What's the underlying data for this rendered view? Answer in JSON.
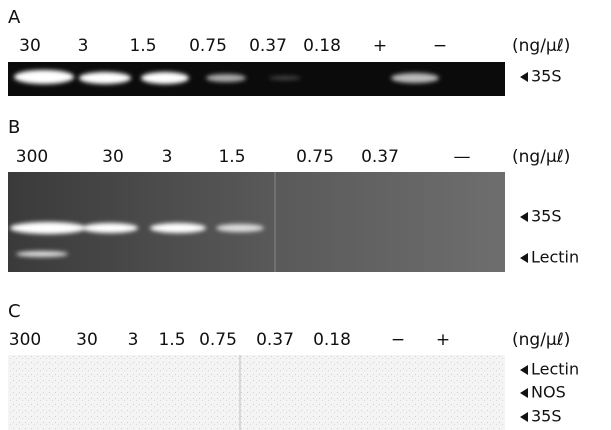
{
  "panels": [
    {
      "label": "A",
      "lanes": [
        "30",
        "3",
        "1.5",
        "0.75",
        "0.37",
        "0.18",
        "+",
        "−"
      ],
      "unit": "(ng/μℓ)",
      "markers": [
        "35S"
      ]
    },
    {
      "label": "B",
      "lanes": [
        "300",
        "30",
        "3",
        "1.5",
        "0.75",
        "0.37",
        "—"
      ],
      "unit": "(ng/μℓ)",
      "markers": [
        "35S",
        "Lectin"
      ]
    },
    {
      "label": "C",
      "lanes": [
        "300",
        "30",
        "3",
        "1.5",
        "0.75",
        "0.37",
        "0.18",
        "−",
        "+"
      ],
      "unit": "(ng/μℓ)",
      "markers": [
        "Lectin",
        "NOS",
        "35S"
      ]
    }
  ]
}
